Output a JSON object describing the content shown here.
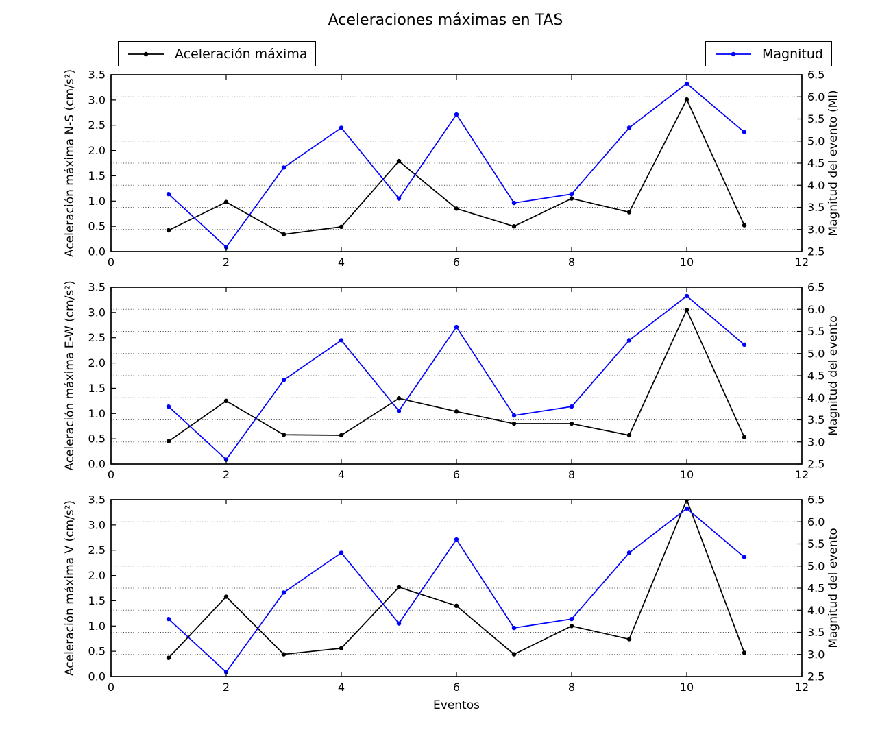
{
  "title": "Aceleraciones máximas en TAS",
  "xlabel": "Eventos",
  "legends": [
    {
      "label": "Aceleración máxima",
      "color": "#000000"
    },
    {
      "label": "Magnitud",
      "color": "#0000ff"
    }
  ],
  "colors": {
    "acceleration_line": "#000000",
    "magnitude_line": "#0000ff",
    "grid": "#444444",
    "axes": "#000000"
  },
  "chart_data": [
    {
      "type": "line",
      "subplot": "N-S",
      "ylabel_left": "Aceleración máxima N-S (cm/s²)",
      "ylabel_right": "Magnitud del evento (Ml)",
      "xlim": [
        0,
        12
      ],
      "xticks": [
        0,
        2,
        4,
        6,
        8,
        10,
        12
      ],
      "ylim_left": [
        0.0,
        3.5
      ],
      "yticks_left": [
        0.0,
        0.5,
        1.0,
        1.5,
        2.0,
        2.5,
        3.0,
        3.5
      ],
      "ylim_right": [
        2.5,
        6.5
      ],
      "yticks_right": [
        2.5,
        3.0,
        3.5,
        4.0,
        4.5,
        5.0,
        5.5,
        6.0,
        6.5
      ],
      "grid": "horizontal-dotted",
      "x": [
        1,
        2,
        3,
        4,
        5,
        6,
        7,
        8,
        9,
        10,
        11
      ],
      "series": [
        {
          "name": "Aceleración máxima",
          "axis": "left",
          "color": "#000000",
          "values": [
            0.42,
            0.98,
            0.34,
            0.49,
            1.79,
            0.85,
            0.5,
            1.05,
            0.78,
            3.01,
            0.52
          ]
        },
        {
          "name": "Magnitud",
          "axis": "right",
          "color": "#0000ff",
          "values": [
            3.8,
            2.6,
            4.4,
            5.3,
            3.7,
            5.6,
            3.6,
            3.8,
            5.3,
            6.3,
            5.2
          ]
        }
      ]
    },
    {
      "type": "line",
      "subplot": "E-W",
      "ylabel_left": "Aceleración máxima E-W (cm/s²)",
      "ylabel_right": "Magnitud del evento",
      "xlim": [
        0,
        12
      ],
      "xticks": [
        0,
        2,
        4,
        6,
        8,
        10,
        12
      ],
      "ylim_left": [
        0.0,
        3.5
      ],
      "yticks_left": [
        0.0,
        0.5,
        1.0,
        1.5,
        2.0,
        2.5,
        3.0,
        3.5
      ],
      "ylim_right": [
        2.5,
        6.5
      ],
      "yticks_right": [
        2.5,
        3.0,
        3.5,
        4.0,
        4.5,
        5.0,
        5.5,
        6.0,
        6.5
      ],
      "grid": "horizontal-dotted",
      "x": [
        1,
        2,
        3,
        4,
        5,
        6,
        7,
        8,
        9,
        10,
        11
      ],
      "series": [
        {
          "name": "Aceleración máxima",
          "axis": "left",
          "color": "#000000",
          "values": [
            0.45,
            1.25,
            0.58,
            0.57,
            1.3,
            1.04,
            0.8,
            0.8,
            0.57,
            3.05,
            0.53
          ]
        },
        {
          "name": "Magnitud",
          "axis": "right",
          "color": "#0000ff",
          "values": [
            3.8,
            2.6,
            4.4,
            5.3,
            3.7,
            5.6,
            3.6,
            3.8,
            5.3,
            6.3,
            5.2
          ]
        }
      ]
    },
    {
      "type": "line",
      "subplot": "V",
      "ylabel_left": "Aceleración máxima V (cm/s²)",
      "ylabel_right": "Magnitud del evento",
      "xlim": [
        0,
        12
      ],
      "xticks": [
        0,
        2,
        4,
        6,
        8,
        10,
        12
      ],
      "ylim_left": [
        0.0,
        3.5
      ],
      "yticks_left": [
        0.0,
        0.5,
        1.0,
        1.5,
        2.0,
        2.5,
        3.0,
        3.5
      ],
      "ylim_right": [
        2.5,
        6.5
      ],
      "yticks_right": [
        2.5,
        3.0,
        3.5,
        4.0,
        4.5,
        5.0,
        5.5,
        6.0,
        6.5
      ],
      "grid": "horizontal-dotted",
      "x": [
        1,
        2,
        3,
        4,
        5,
        6,
        7,
        8,
        9,
        10,
        11
      ],
      "series": [
        {
          "name": "Aceleración máxima",
          "axis": "left",
          "color": "#000000",
          "values": [
            0.37,
            1.58,
            0.44,
            0.56,
            1.77,
            1.4,
            0.44,
            1.0,
            0.74,
            3.5,
            0.47
          ]
        },
        {
          "name": "Magnitud",
          "axis": "right",
          "color": "#0000ff",
          "values": [
            3.8,
            2.6,
            4.4,
            5.3,
            3.7,
            5.6,
            3.6,
            3.8,
            5.3,
            6.3,
            5.2
          ]
        }
      ]
    }
  ]
}
